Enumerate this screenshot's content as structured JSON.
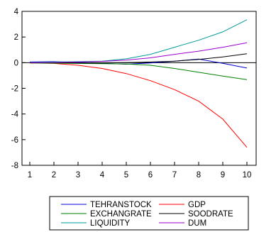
{
  "chart_data": {
    "type": "line",
    "x": [
      1,
      2,
      3,
      4,
      5,
      6,
      7,
      8,
      9,
      10
    ],
    "xlim": [
      1,
      10
    ],
    "ylim": [
      -8,
      4
    ],
    "yticks": [
      4,
      2,
      0,
      -2,
      -4,
      -6,
      -8
    ],
    "grid": false,
    "zero_line": true,
    "legend_position": "bottom",
    "series": [
      {
        "name": "TEHRANSTOCK",
        "color": "#0000cc",
        "values": [
          0.05,
          0.08,
          0.02,
          -0.05,
          -0.12,
          -0.02,
          0.12,
          0.28,
          -0.05,
          -0.42
        ]
      },
      {
        "name": "GDP",
        "color": "#ff0000",
        "values": [
          -0.02,
          -0.06,
          -0.2,
          -0.45,
          -0.85,
          -1.4,
          -2.1,
          -3.0,
          -4.4,
          -6.6
        ]
      },
      {
        "name": "EXCHANGRATE",
        "color": "#008000",
        "values": [
          -0.02,
          -0.04,
          -0.06,
          -0.08,
          -0.1,
          -0.2,
          -0.45,
          -0.75,
          -1.05,
          -1.32
        ]
      },
      {
        "name": "SOODRATE",
        "color": "#000000",
        "values": [
          0.01,
          0.0,
          -0.02,
          -0.02,
          0.0,
          0.05,
          0.12,
          0.25,
          0.45,
          0.7
        ]
      },
      {
        "name": "LIQUIDITY",
        "color": "#009999",
        "values": [
          0.02,
          0.05,
          0.08,
          0.12,
          0.3,
          0.65,
          1.2,
          1.75,
          2.4,
          3.35
        ]
      },
      {
        "name": "DUM",
        "color": "#9900cc",
        "values": [
          0.0,
          0.02,
          0.05,
          0.1,
          0.2,
          0.38,
          0.65,
          0.9,
          1.2,
          1.55
        ]
      }
    ]
  }
}
